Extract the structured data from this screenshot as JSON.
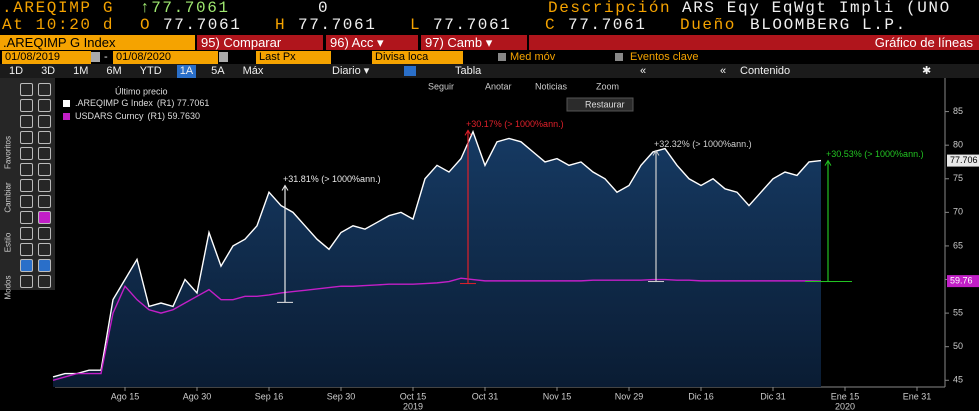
{
  "header": {
    "ticker": ".AREQIMP G",
    "last": "↑77.7061",
    "change": "0",
    "desc_label": "Descripción",
    "desc": "ARS Eqy EqWgt Impli (UNO",
    "time": "At 10:20 d",
    "open_label": "O",
    "open": "77.7061",
    "high_label": "H",
    "high": "77.7061",
    "low_label": "L",
    "low": "77.7061",
    "close_label": "C",
    "close": "77.7061",
    "owner_label": "Dueño",
    "owner": "BLOOMBERG L.P."
  },
  "menu": {
    "security": ".AREQIMP G Index",
    "buttons": [
      "95) Comparar",
      "96) Acc",
      "97) Camb"
    ],
    "view": "Gráfico de líneas"
  },
  "settings": {
    "start": "01/08/2019",
    "sep": "-",
    "end": "01/08/2020",
    "field": "Last Px",
    "currency": "Divisa loca",
    "moving_avg": "Med móv",
    "events": "Eventos clave"
  },
  "periods": {
    "items": [
      "1D",
      "3D",
      "1M",
      "6M",
      "YTD",
      "1A",
      "5A",
      "Máx"
    ],
    "active": 5,
    "frequency": "Diario",
    "table": "Tabla",
    "content": "Contenido"
  },
  "side_tabs": [
    "Favoritos",
    "Cambiar",
    "Estilo",
    "Modos"
  ],
  "chart_tools": [
    "Seguir",
    "Anotar",
    "Noticias",
    "Zoom"
  ],
  "restore": "Restaurar",
  "chart_data": {
    "type": "line",
    "legend_title": "Último precio",
    "categories": [
      null,
      null,
      null,
      null,
      null,
      null,
      "Ago 15",
      null,
      null,
      null,
      null,
      null,
      "Ago 30",
      null,
      null,
      null,
      null,
      null,
      "Sep 16",
      null,
      null,
      null,
      null,
      null,
      "Sep 30",
      null,
      null,
      null,
      null,
      null,
      "Oct 15",
      null,
      null,
      null,
      null,
      null,
      "Oct 31",
      null,
      null,
      null,
      null,
      null,
      "Nov 15",
      null,
      null,
      null,
      null,
      null,
      "Nov 29",
      null,
      null,
      null,
      null,
      null,
      "Dic 16",
      null,
      null,
      null,
      null,
      null,
      "Dic 31",
      null,
      null,
      null,
      null,
      null,
      "Ene 15",
      null,
      null,
      null,
      null,
      null,
      "Ene 31"
    ],
    "year_labels": [
      "2019",
      "2020"
    ],
    "series": [
      {
        "name": ".AREQIMP G Index",
        "legend_value": "(R1) 77.7061",
        "last_label": "77.706",
        "color": "#ffffff",
        "area": true,
        "values": [
          45.5,
          46,
          46,
          46.5,
          46.5,
          57,
          60,
          63,
          56,
          56.5,
          56,
          60,
          58,
          67,
          62,
          65,
          66,
          68,
          73,
          71,
          70,
          68,
          66,
          64.5,
          67,
          68,
          67.5,
          68.5,
          69.5,
          70,
          69,
          75,
          77,
          76,
          78,
          82,
          77,
          80.5,
          81,
          80.5,
          79,
          77.5,
          78,
          77,
          77.5,
          76,
          75,
          73,
          74,
          77,
          79,
          79.5,
          77,
          75,
          74,
          75,
          73.5,
          73,
          71,
          73,
          75,
          76,
          75.5,
          77.5,
          77.7061,
          null,
          null,
          null,
          null,
          null,
          null,
          null,
          null
        ]
      },
      {
        "name": "USDARS Curncy",
        "legend_value": "(R1) 59.7630",
        "last_label": "59.76",
        "color": "#c21fc7",
        "area": false,
        "values": [
          45,
          45.5,
          46,
          46,
          46,
          55,
          59,
          57,
          55.5,
          55,
          55.5,
          56.5,
          57.5,
          58.5,
          57,
          57,
          57.5,
          57.5,
          57.7,
          58,
          58.2,
          58.4,
          58.6,
          58.8,
          59,
          59,
          59.1,
          59.2,
          59.3,
          59.3,
          59.3,
          59.4,
          59.5,
          59.7,
          60.2,
          60,
          59.8,
          59.8,
          59.8,
          59.8,
          59.8,
          59.8,
          59.8,
          59.8,
          59.8,
          59.9,
          59.9,
          59.9,
          59.9,
          59.9,
          60,
          60,
          59.9,
          59.9,
          59.8,
          59.8,
          59.8,
          59.8,
          59.8,
          59.8,
          59.8,
          59.8,
          59.8,
          59.8,
          59.763,
          null,
          null,
          null,
          null,
          null,
          null,
          null,
          null
        ]
      }
    ],
    "ylim": [
      44,
      90
    ],
    "yticks": [
      45,
      50,
      55,
      60,
      65,
      70,
      75,
      80,
      85
    ],
    "annotations": [
      {
        "text": "+31.81% (> 1000%ann.)",
        "color": "#e8e8e8",
        "low": 56.6,
        "high": 74
      },
      {
        "text": "+30.17% (> 1000%ann.)",
        "color": "#e0202a",
        "low": 59.4,
        "high": 82.2
      },
      {
        "text": "+32.32% (> 1000%ann.)",
        "color": "#d0d0d0",
        "low": 59.7,
        "high": 79.2
      },
      {
        "text": "+30.53% (> 1000%ann.)",
        "color": "#22c322",
        "low": 59.7,
        "high": 77.7
      }
    ]
  }
}
